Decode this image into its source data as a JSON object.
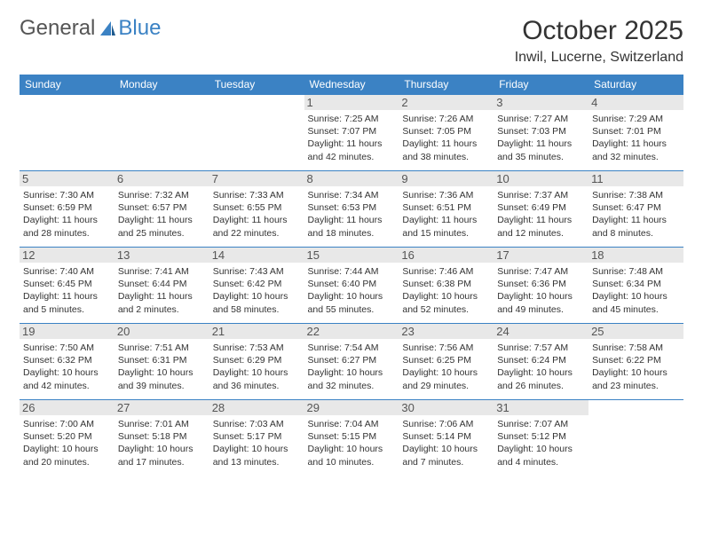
{
  "logo": {
    "part1": "General",
    "part2": "Blue"
  },
  "title": "October 2025",
  "location": "Inwil, Lucerne, Switzerland",
  "colors": {
    "header_bg": "#3b82c4",
    "header_text": "#ffffff",
    "daynum_bg": "#e8e8e8",
    "border": "#3b82c4",
    "text": "#333333",
    "logo_gray": "#555555",
    "logo_blue": "#3b82c4",
    "page_bg": "#ffffff"
  },
  "day_headers": [
    "Sunday",
    "Monday",
    "Tuesday",
    "Wednesday",
    "Thursday",
    "Friday",
    "Saturday"
  ],
  "weeks": [
    [
      null,
      null,
      null,
      {
        "n": "1",
        "sr": "Sunrise: 7:25 AM",
        "ss": "Sunset: 7:07 PM",
        "d1": "Daylight: 11 hours",
        "d2": "and 42 minutes."
      },
      {
        "n": "2",
        "sr": "Sunrise: 7:26 AM",
        "ss": "Sunset: 7:05 PM",
        "d1": "Daylight: 11 hours",
        "d2": "and 38 minutes."
      },
      {
        "n": "3",
        "sr": "Sunrise: 7:27 AM",
        "ss": "Sunset: 7:03 PM",
        "d1": "Daylight: 11 hours",
        "d2": "and 35 minutes."
      },
      {
        "n": "4",
        "sr": "Sunrise: 7:29 AM",
        "ss": "Sunset: 7:01 PM",
        "d1": "Daylight: 11 hours",
        "d2": "and 32 minutes."
      }
    ],
    [
      {
        "n": "5",
        "sr": "Sunrise: 7:30 AM",
        "ss": "Sunset: 6:59 PM",
        "d1": "Daylight: 11 hours",
        "d2": "and 28 minutes."
      },
      {
        "n": "6",
        "sr": "Sunrise: 7:32 AM",
        "ss": "Sunset: 6:57 PM",
        "d1": "Daylight: 11 hours",
        "d2": "and 25 minutes."
      },
      {
        "n": "7",
        "sr": "Sunrise: 7:33 AM",
        "ss": "Sunset: 6:55 PM",
        "d1": "Daylight: 11 hours",
        "d2": "and 22 minutes."
      },
      {
        "n": "8",
        "sr": "Sunrise: 7:34 AM",
        "ss": "Sunset: 6:53 PM",
        "d1": "Daylight: 11 hours",
        "d2": "and 18 minutes."
      },
      {
        "n": "9",
        "sr": "Sunrise: 7:36 AM",
        "ss": "Sunset: 6:51 PM",
        "d1": "Daylight: 11 hours",
        "d2": "and 15 minutes."
      },
      {
        "n": "10",
        "sr": "Sunrise: 7:37 AM",
        "ss": "Sunset: 6:49 PM",
        "d1": "Daylight: 11 hours",
        "d2": "and 12 minutes."
      },
      {
        "n": "11",
        "sr": "Sunrise: 7:38 AM",
        "ss": "Sunset: 6:47 PM",
        "d1": "Daylight: 11 hours",
        "d2": "and 8 minutes."
      }
    ],
    [
      {
        "n": "12",
        "sr": "Sunrise: 7:40 AM",
        "ss": "Sunset: 6:45 PM",
        "d1": "Daylight: 11 hours",
        "d2": "and 5 minutes."
      },
      {
        "n": "13",
        "sr": "Sunrise: 7:41 AM",
        "ss": "Sunset: 6:44 PM",
        "d1": "Daylight: 11 hours",
        "d2": "and 2 minutes."
      },
      {
        "n": "14",
        "sr": "Sunrise: 7:43 AM",
        "ss": "Sunset: 6:42 PM",
        "d1": "Daylight: 10 hours",
        "d2": "and 58 minutes."
      },
      {
        "n": "15",
        "sr": "Sunrise: 7:44 AM",
        "ss": "Sunset: 6:40 PM",
        "d1": "Daylight: 10 hours",
        "d2": "and 55 minutes."
      },
      {
        "n": "16",
        "sr": "Sunrise: 7:46 AM",
        "ss": "Sunset: 6:38 PM",
        "d1": "Daylight: 10 hours",
        "d2": "and 52 minutes."
      },
      {
        "n": "17",
        "sr": "Sunrise: 7:47 AM",
        "ss": "Sunset: 6:36 PM",
        "d1": "Daylight: 10 hours",
        "d2": "and 49 minutes."
      },
      {
        "n": "18",
        "sr": "Sunrise: 7:48 AM",
        "ss": "Sunset: 6:34 PM",
        "d1": "Daylight: 10 hours",
        "d2": "and 45 minutes."
      }
    ],
    [
      {
        "n": "19",
        "sr": "Sunrise: 7:50 AM",
        "ss": "Sunset: 6:32 PM",
        "d1": "Daylight: 10 hours",
        "d2": "and 42 minutes."
      },
      {
        "n": "20",
        "sr": "Sunrise: 7:51 AM",
        "ss": "Sunset: 6:31 PM",
        "d1": "Daylight: 10 hours",
        "d2": "and 39 minutes."
      },
      {
        "n": "21",
        "sr": "Sunrise: 7:53 AM",
        "ss": "Sunset: 6:29 PM",
        "d1": "Daylight: 10 hours",
        "d2": "and 36 minutes."
      },
      {
        "n": "22",
        "sr": "Sunrise: 7:54 AM",
        "ss": "Sunset: 6:27 PM",
        "d1": "Daylight: 10 hours",
        "d2": "and 32 minutes."
      },
      {
        "n": "23",
        "sr": "Sunrise: 7:56 AM",
        "ss": "Sunset: 6:25 PM",
        "d1": "Daylight: 10 hours",
        "d2": "and 29 minutes."
      },
      {
        "n": "24",
        "sr": "Sunrise: 7:57 AM",
        "ss": "Sunset: 6:24 PM",
        "d1": "Daylight: 10 hours",
        "d2": "and 26 minutes."
      },
      {
        "n": "25",
        "sr": "Sunrise: 7:58 AM",
        "ss": "Sunset: 6:22 PM",
        "d1": "Daylight: 10 hours",
        "d2": "and 23 minutes."
      }
    ],
    [
      {
        "n": "26",
        "sr": "Sunrise: 7:00 AM",
        "ss": "Sunset: 5:20 PM",
        "d1": "Daylight: 10 hours",
        "d2": "and 20 minutes."
      },
      {
        "n": "27",
        "sr": "Sunrise: 7:01 AM",
        "ss": "Sunset: 5:18 PM",
        "d1": "Daylight: 10 hours",
        "d2": "and 17 minutes."
      },
      {
        "n": "28",
        "sr": "Sunrise: 7:03 AM",
        "ss": "Sunset: 5:17 PM",
        "d1": "Daylight: 10 hours",
        "d2": "and 13 minutes."
      },
      {
        "n": "29",
        "sr": "Sunrise: 7:04 AM",
        "ss": "Sunset: 5:15 PM",
        "d1": "Daylight: 10 hours",
        "d2": "and 10 minutes."
      },
      {
        "n": "30",
        "sr": "Sunrise: 7:06 AM",
        "ss": "Sunset: 5:14 PM",
        "d1": "Daylight: 10 hours",
        "d2": "and 7 minutes."
      },
      {
        "n": "31",
        "sr": "Sunrise: 7:07 AM",
        "ss": "Sunset: 5:12 PM",
        "d1": "Daylight: 10 hours",
        "d2": "and 4 minutes."
      },
      null
    ]
  ]
}
